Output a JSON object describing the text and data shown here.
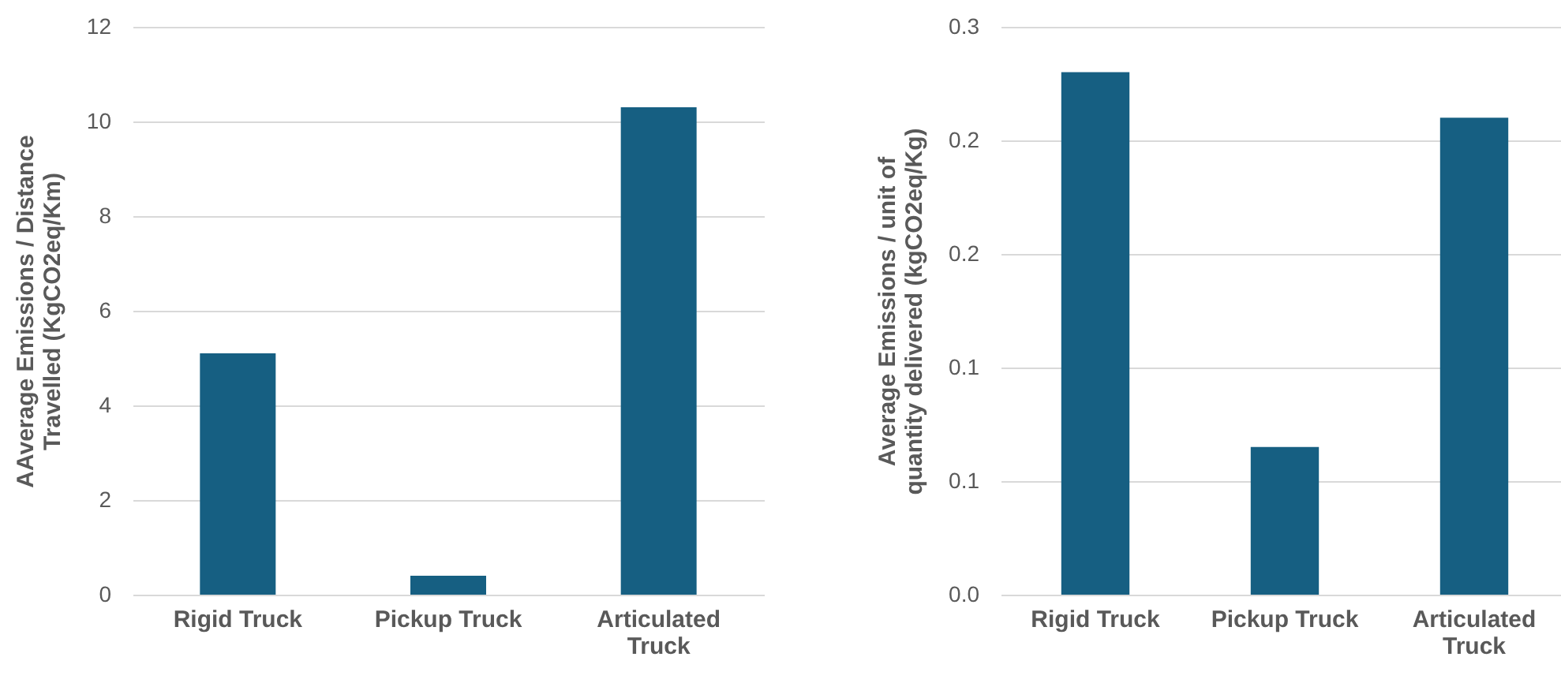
{
  "chart_data": [
    {
      "type": "bar",
      "ylabel": "AAverage Emissions / Distance Travelled (KgCO2eq/Km)",
      "categories": [
        "Rigid Truck",
        "Pickup Truck",
        "Articulated Truck"
      ],
      "values": [
        5.1,
        0.4,
        10.3
      ],
      "color": "#165f82",
      "ylim": [
        0,
        12
      ],
      "yticks": [
        0,
        2,
        4,
        6,
        8,
        10,
        12
      ],
      "grid": "y"
    },
    {
      "type": "bar",
      "ylabel": "Average Emissions / unit of quantity delivered (kgCO2eq/Kg)",
      "categories": [
        "Rigid Truck",
        "Pickup Truck",
        "Articulated Truck"
      ],
      "values": [
        0.276,
        0.078,
        0.252
      ],
      "color": "#165f82",
      "ylim": [
        0,
        0.3
      ],
      "yticks": [
        {
          "value": 0,
          "label": "0.0"
        },
        {
          "value": 0.06,
          "label": "0.1"
        },
        {
          "value": 0.12,
          "label": "0.1"
        },
        {
          "value": 0.18,
          "label": "0.2"
        },
        {
          "value": 0.24,
          "label": "0.2"
        },
        {
          "value": 0.3,
          "label": "0.3"
        }
      ],
      "grid": "y"
    }
  ]
}
